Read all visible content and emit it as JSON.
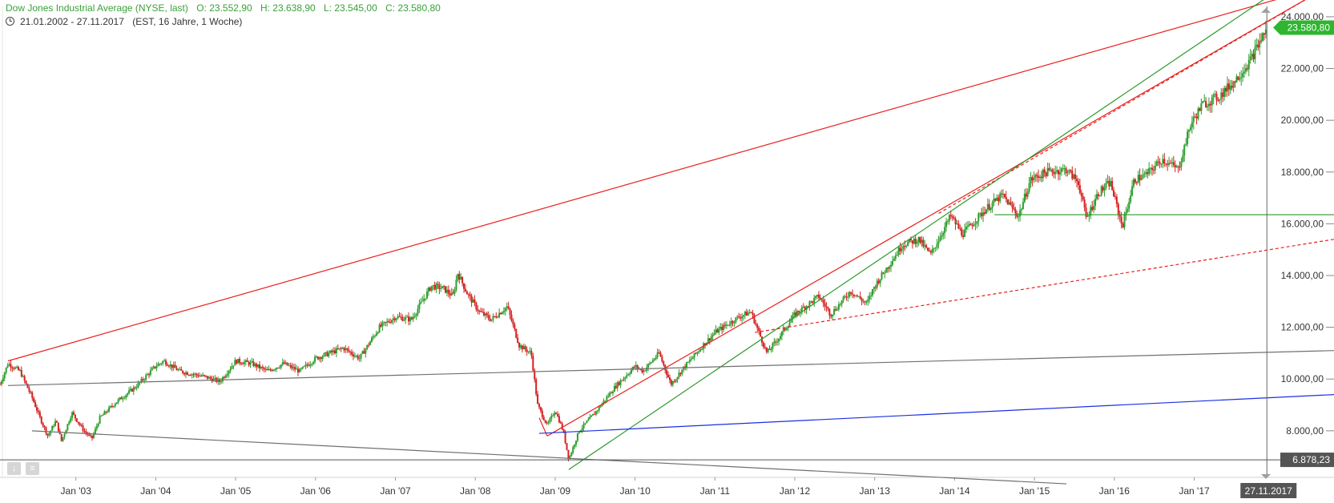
{
  "header": {
    "title": "Dow Jones Industrial Average (NYSE, last)",
    "open": "O: 23.552,90",
    "high": "H: 23.638,90",
    "low": "L: 23.545,00",
    "close": "C: 23.580,80",
    "range": "21.01.2002 - 27.11.2017",
    "info": "(EST, 16 Jahre, 1 Woche)"
  },
  "colors": {
    "up": "#2e9e2e",
    "down": "#d42020",
    "trend_red": "#e8201c",
    "trend_green": "#2a9a2a",
    "trend_blue": "#1a30e0",
    "trend_gray": "#707070",
    "price_label_bg": "#2fb52f",
    "crosshair_label_bg": "#555555"
  },
  "chart_data": {
    "type": "candlestick",
    "x_label": "",
    "y_label": "",
    "x_range": [
      2002.05,
      2018.75
    ],
    "y_range": [
      6200,
      24400
    ],
    "x_ticks": [
      "Jan '03",
      "Jan '04",
      "Jan '05",
      "Jan '06",
      "Jan '07",
      "Jan '08",
      "Jan '09",
      "Jan '10",
      "Jan '11",
      "Jan '12",
      "Jan '13",
      "Jan '14",
      "Jan '15",
      "Jan '16",
      "Jan '17"
    ],
    "y_ticks": [
      "8.000,00",
      "10.000,00",
      "12.000,00",
      "14.000,00",
      "16.000,00",
      "18.000,00",
      "20.000,00",
      "22.000,00",
      "24.000,00"
    ],
    "y_tick_values": [
      8000,
      10000,
      12000,
      14000,
      16000,
      18000,
      20000,
      22000,
      24000
    ],
    "last_price_label": "23.580,80",
    "last_price": 23580.8,
    "crosshair_date_label": "27.11.2017",
    "crosshair_date": 2017.91,
    "crosshair_price_label": "6.878,23",
    "crosshair_price": 6878.23,
    "price_anchors": [
      [
        2002.05,
        9800
      ],
      [
        2002.15,
        10600
      ],
      [
        2002.3,
        10300
      ],
      [
        2002.45,
        9300
      ],
      [
        2002.55,
        8500
      ],
      [
        2002.65,
        7800
      ],
      [
        2002.75,
        8400
      ],
      [
        2002.82,
        7600
      ],
      [
        2002.95,
        8700
      ],
      [
        2003.1,
        8000
      ],
      [
        2003.2,
        7700
      ],
      [
        2003.3,
        8500
      ],
      [
        2003.5,
        9100
      ],
      [
        2003.75,
        9700
      ],
      [
        2004.0,
        10500
      ],
      [
        2004.1,
        10700
      ],
      [
        2004.3,
        10300
      ],
      [
        2004.6,
        10100
      ],
      [
        2004.8,
        9900
      ],
      [
        2005.0,
        10700
      ],
      [
        2005.2,
        10600
      ],
      [
        2005.4,
        10300
      ],
      [
        2005.6,
        10600
      ],
      [
        2005.8,
        10300
      ],
      [
        2006.0,
        10800
      ],
      [
        2006.35,
        11200
      ],
      [
        2006.55,
        10800
      ],
      [
        2006.8,
        12000
      ],
      [
        2007.0,
        12400
      ],
      [
        2007.2,
        12300
      ],
      [
        2007.45,
        13600
      ],
      [
        2007.6,
        13500
      ],
      [
        2007.72,
        13200
      ],
      [
        2007.78,
        14100
      ],
      [
        2007.9,
        13300
      ],
      [
        2008.05,
        12600
      ],
      [
        2008.2,
        12300
      ],
      [
        2008.4,
        12800
      ],
      [
        2008.55,
        11300
      ],
      [
        2008.7,
        11000
      ],
      [
        2008.78,
        9000
      ],
      [
        2008.9,
        8200
      ],
      [
        2009.0,
        8800
      ],
      [
        2009.1,
        8000
      ],
      [
        2009.17,
        6900
      ],
      [
        2009.3,
        8000
      ],
      [
        2009.5,
        8700
      ],
      [
        2009.75,
        9700
      ],
      [
        2010.0,
        10500
      ],
      [
        2010.1,
        10300
      ],
      [
        2010.3,
        11000
      ],
      [
        2010.45,
        9800
      ],
      [
        2010.6,
        10400
      ],
      [
        2010.85,
        11300
      ],
      [
        2011.0,
        11800
      ],
      [
        2011.3,
        12400
      ],
      [
        2011.45,
        12600
      ],
      [
        2011.55,
        11800
      ],
      [
        2011.65,
        11000
      ],
      [
        2011.8,
        11600
      ],
      [
        2012.0,
        12500
      ],
      [
        2012.3,
        13200
      ],
      [
        2012.45,
        12500
      ],
      [
        2012.7,
        13400
      ],
      [
        2012.9,
        12900
      ],
      [
        2013.0,
        13600
      ],
      [
        2013.35,
        15200
      ],
      [
        2013.55,
        15400
      ],
      [
        2013.7,
        14800
      ],
      [
        2013.95,
        16300
      ],
      [
        2014.1,
        15600
      ],
      [
        2014.4,
        16600
      ],
      [
        2014.6,
        17100
      ],
      [
        2014.8,
        16300
      ],
      [
        2014.95,
        17700
      ],
      [
        2015.15,
        18000
      ],
      [
        2015.4,
        18100
      ],
      [
        2015.55,
        17600
      ],
      [
        2015.65,
        16200
      ],
      [
        2015.8,
        17200
      ],
      [
        2015.95,
        17600
      ],
      [
        2016.1,
        15900
      ],
      [
        2016.25,
        17700
      ],
      [
        2016.4,
        17900
      ],
      [
        2016.6,
        18500
      ],
      [
        2016.8,
        18100
      ],
      [
        2016.95,
        19800
      ],
      [
        2017.1,
        20600
      ],
      [
        2017.3,
        20900
      ],
      [
        2017.5,
        21500
      ],
      [
        2017.7,
        22300
      ],
      [
        2017.91,
        23580
      ]
    ],
    "trendlines": [
      {
        "color": "red",
        "style": "solid",
        "from": [
          2002.15,
          10700
        ],
        "to": [
          2018.75,
          25300
        ]
      },
      {
        "color": "red",
        "style": "solid",
        "from": [
          2008.9,
          7800
        ],
        "to": [
          2018.75,
          25300
        ]
      },
      {
        "color": "red",
        "style": "dashed",
        "from": [
          2011.5,
          11800
        ],
        "to": [
          2018.75,
          15400
        ]
      },
      {
        "color": "red",
        "style": "dashed",
        "from": [
          2013.8,
          16400
        ],
        "to": [
          2018.75,
          25300
        ]
      },
      {
        "color": "red",
        "style": "solid",
        "from": [
          2008.8,
          8500
        ],
        "to": [
          2008.9,
          7800
        ]
      },
      {
        "color": "green",
        "style": "solid",
        "from": [
          2009.17,
          6500
        ],
        "to": [
          2018.75,
          26500
        ]
      },
      {
        "color": "green",
        "style": "solid",
        "from": [
          2014.5,
          16350
        ],
        "to": [
          2018.75,
          16350
        ]
      },
      {
        "color": "blue",
        "style": "solid",
        "from": [
          2008.8,
          7900
        ],
        "to": [
          2018.75,
          9400
        ]
      },
      {
        "color": "gray",
        "style": "solid",
        "from": [
          2002.15,
          9750
        ],
        "to": [
          2018.75,
          11100
        ]
      },
      {
        "color": "gray",
        "style": "solid",
        "from": [
          2002.45,
          8000
        ],
        "to": [
          2015.4,
          5950
        ]
      }
    ]
  }
}
